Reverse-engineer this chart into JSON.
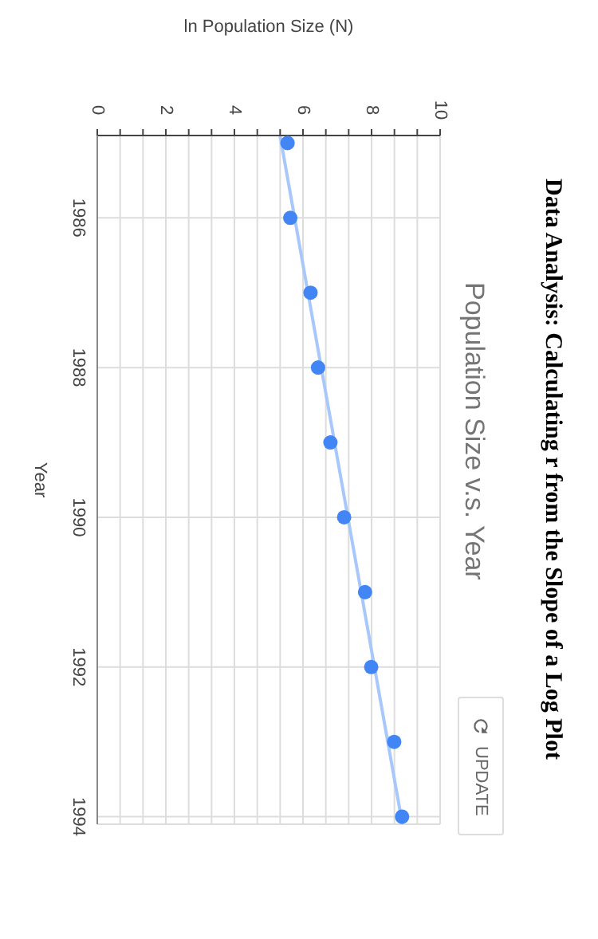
{
  "chart_data": {
    "type": "scatter",
    "title": "Data Analysis: Calculating r from the Slope of a Log Plot",
    "subtitle": "Population Size v.s. Year",
    "xlabel": "ln Population Size (N)",
    "ylabel": "Year",
    "annotations": [
      "UPDATE"
    ],
    "series": [
      {
        "color": "#4285f4",
        "marker": "circle",
        "x": [
          5.55,
          5.63,
          6.22,
          6.44,
          6.8,
          7.2,
          7.81,
          7.99,
          8.66,
          8.89
        ],
        "values": [
          1985,
          1986,
          1987,
          1988,
          1989,
          1990,
          1991,
          1992,
          1993,
          1994
        ]
      },
      {
        "type": "line",
        "color": "#a8c8fb",
        "marker": "none",
        "x": [
          5.33,
          8.9
        ],
        "values": [
          1984.9,
          1994.1
        ]
      }
    ],
    "ylim": [
      1994.1,
      1984.9
    ],
    "yticks": [
      1986,
      1988,
      1990,
      1992,
      1994
    ],
    "xlim": [
      0,
      10
    ],
    "xticks": [
      0,
      {
        "value": 0.667,
        "label": null
      },
      {
        "value": 1.333,
        "label": null
      },
      2,
      {
        "value": 2.667,
        "label": null
      },
      {
        "value": 3.333,
        "label": null
      },
      4,
      {
        "value": 4.667,
        "label": null
      },
      {
        "value": 5.333,
        "label": null
      },
      6,
      {
        "value": 6.667,
        "label": null
      },
      {
        "value": 7.333,
        "label": null
      },
      8,
      {
        "value": 8.667,
        "label": null
      },
      {
        "value": 9.333,
        "label": null
      },
      10
    ],
    "grid": true,
    "legend": false
  }
}
